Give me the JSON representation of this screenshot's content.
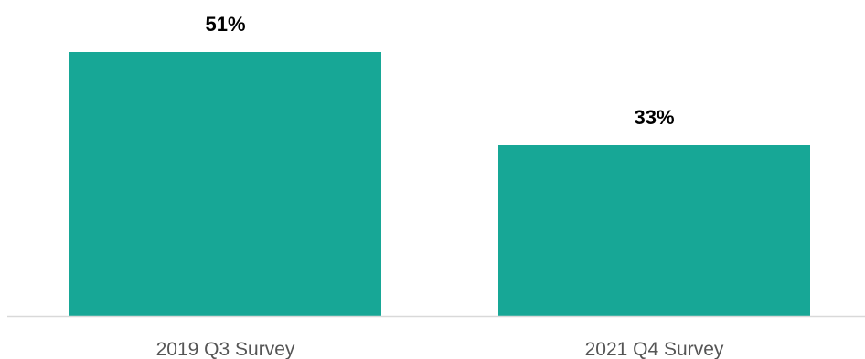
{
  "chart_data": {
    "type": "bar",
    "categories": [
      "2019 Q3 Survey",
      "2021 Q4 Survey"
    ],
    "values": [
      51,
      33
    ],
    "value_labels": [
      "51%",
      "33%"
    ],
    "title": "",
    "xlabel": "",
    "ylabel": "",
    "ylim": [
      0,
      60
    ],
    "grid": false,
    "legend": "none",
    "colors": {
      "bar": "#17a796",
      "axis": "#d9d9d9",
      "value_text": "#000000",
      "tick_text": "#555555"
    }
  }
}
